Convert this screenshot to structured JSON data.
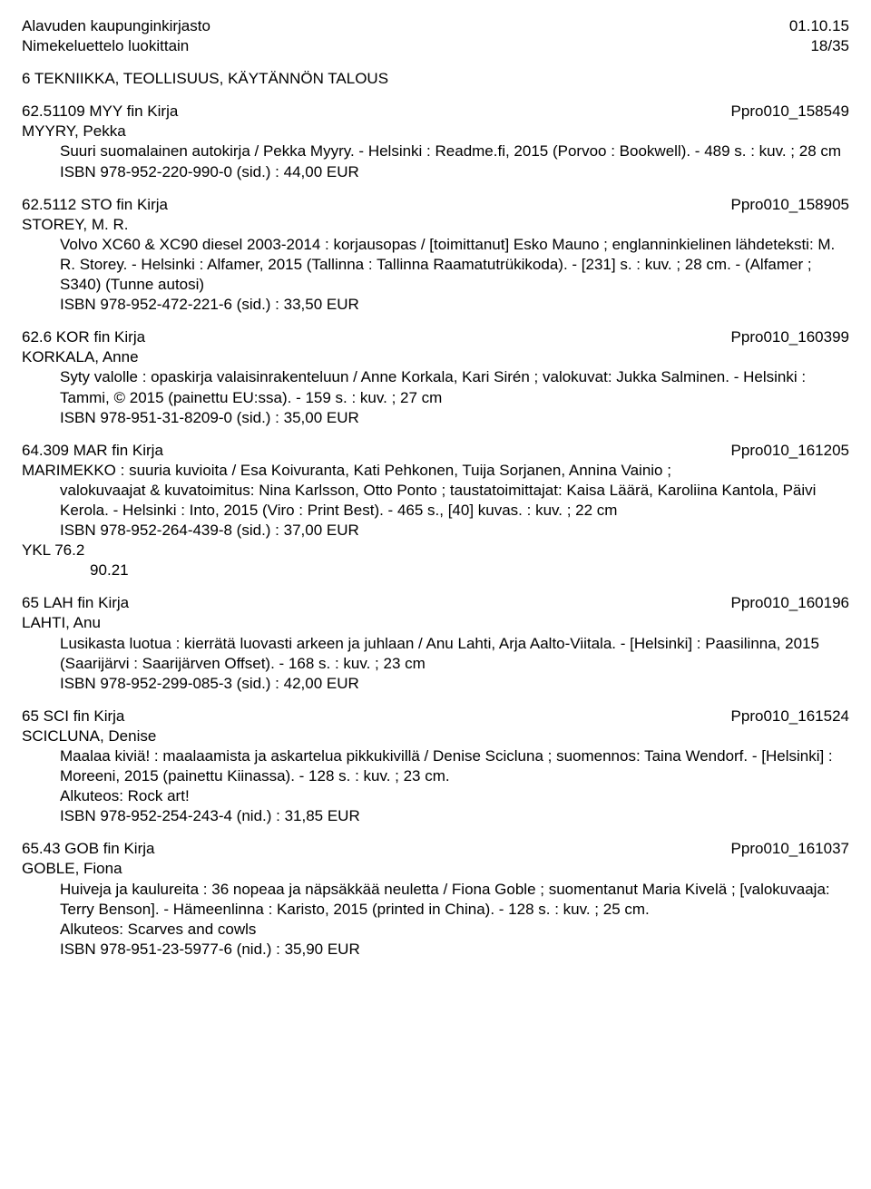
{
  "header": {
    "library": "Alavuden kaupunginkirjasto",
    "date": "01.10.15",
    "subtitle": "Nimekeluettelo luokittain",
    "page": "18/35"
  },
  "section": {
    "heading": "6 TEKNIIKKA, TEOLLISUUS, KÄYTÄNNÖN TALOUS"
  },
  "entries": [
    {
      "head_left": "62.51109 MYY   fin   Kirja",
      "head_right": "Ppro010_158549",
      "author": "MYYRY, Pekka",
      "body": "Suuri suomalainen autokirja / Pekka Myyry. - Helsinki : Readme.fi, 2015 (Porvoo : Bookwell). - 489 s. : kuv. ; 28 cm",
      "isbn": "ISBN 978-952-220-990-0 (sid.) : 44,00 EUR",
      "extra_lines": []
    },
    {
      "head_left": "62.5112 STO   fin   Kirja",
      "head_right": "Ppro010_158905",
      "author": "STOREY, M. R.",
      "body": "Volvo XC60 & XC90 diesel 2003-2014 : korjausopas / [toimittanut] Esko Mauno ; englanninkielinen lähdeteksti: M. R. Storey. - Helsinki : Alfamer, 2015 (Tallinna : Tallinna Raamatutrükikoda). - [231] s. : kuv. ; 28 cm. - (Alfamer ; S340) (Tunne autosi)",
      "isbn": "ISBN 978-952-472-221-6 (sid.) : 33,50 EUR",
      "extra_lines": []
    },
    {
      "head_left": "62.6 KOR   fin   Kirja",
      "head_right": "Ppro010_160399",
      "author": "KORKALA, Anne",
      "body": "Syty valolle : opaskirja valaisinrakenteluun / Anne Korkala, Kari Sirén ; valokuvat: Jukka Salminen. - Helsinki : Tammi, © 2015 (painettu EU:ssa). - 159 s. : kuv. ; 27 cm",
      "isbn": "ISBN 978-951-31-8209-0 (sid.) : 35,00 EUR",
      "extra_lines": []
    },
    {
      "head_left": "64.309 MAR   fin   Kirja",
      "head_right": "Ppro010_161205",
      "author": "",
      "body": "",
      "author_as_body_first": "MARIMEKKO : suuria kuvioita / Esa Koivuranta, Kati Pehkonen, Tuija Sorjanen, Annina Vainio ;",
      "body_cont": "valokuvaajat & kuvatoimitus: Nina Karlsson, Otto Ponto ; taustatoimittajat: Kaisa Läärä, Karoliina Kantola, Päivi Kerola. - Helsinki : Into, 2015 (Viro : Print Best). - 465 s., [40] kuvas. : kuv. ; 22 cm",
      "isbn": "ISBN 978-952-264-439-8 (sid.) : 37,00 EUR",
      "extra_lines": [
        "YKL 76.2",
        "       90.21"
      ]
    },
    {
      "head_left": "65 LAH   fin   Kirja",
      "head_right": "Ppro010_160196",
      "author": "LAHTI, Anu",
      "body": "Lusikasta luotua : kierrätä luovasti arkeen ja juhlaan / Anu Lahti, Arja Aalto-Viitala. - [Helsinki] : Paasilinna, 2015 (Saarijärvi : Saarijärven Offset). - 168 s. : kuv. ; 23 cm",
      "isbn": "ISBN 978-952-299-085-3 (sid.) : 42,00 EUR",
      "extra_lines": []
    },
    {
      "head_left": "65 SCI   fin   Kirja",
      "head_right": "Ppro010_161524",
      "author": "SCICLUNA, Denise",
      "body": "Maalaa kiviä! : maalaamista ja askartelua pikkukivillä / Denise Scicluna ; suomennos: Taina Wendorf. - [Helsinki] : Moreeni, 2015 (painettu Kiinassa). - 128 s. : kuv. ; 23 cm.",
      "alkuteos": "Alkuteos: Rock art!",
      "isbn": "ISBN 978-952-254-243-4 (nid.) : 31,85 EUR",
      "extra_lines": []
    },
    {
      "head_left": "65.43 GOB   fin   Kirja",
      "head_right": "Ppro010_161037",
      "author": "GOBLE, Fiona",
      "body": "Huiveja ja kaulureita : 36 nopeaa ja näpsäkkää neuletta / Fiona Goble ; suomentanut Maria Kivelä ; [valokuvaaja: Terry Benson]. - Hämeenlinna : Karisto, 2015 (printed in China). - 128 s. : kuv. ; 25 cm.",
      "alkuteos": "Alkuteos: Scarves and cowls",
      "isbn": "ISBN 978-951-23-5977-6 (nid.) : 35,90 EUR",
      "extra_lines": []
    }
  ]
}
